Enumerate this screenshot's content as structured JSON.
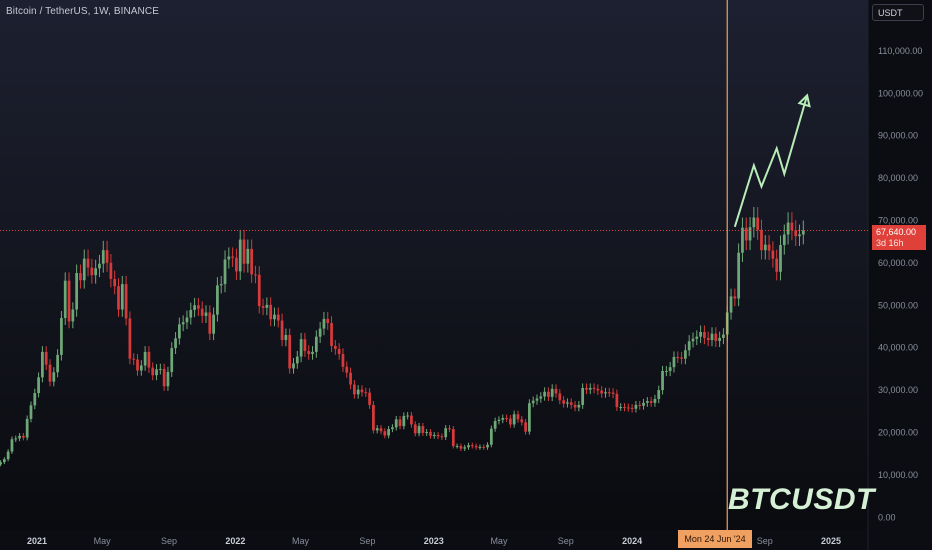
{
  "header": {
    "title": "Bitcoin / TetherUS, 1W, BINANCE"
  },
  "axis_unit": "USDT",
  "last_price": {
    "value": "67,640.00",
    "countdown": "3d 16h"
  },
  "crosshair": {
    "date_label": "Mon 24 Jun '24"
  },
  "watermark": "BTCUSDT",
  "colors": {
    "background": "#0b0d12",
    "up": "#6fa878",
    "down": "#d63a3a",
    "arrow": "#b8ecb8",
    "crosshair": "#f0a060",
    "price_line": "#e0403a"
  },
  "chart_data": {
    "type": "candlestick",
    "title": "Bitcoin / TetherUS, 1W, BINANCE",
    "y_unit": "USDT",
    "y_range": [
      -3000,
      122000
    ],
    "y_ticks": [
      {
        "value": 0,
        "label": "0.00"
      },
      {
        "value": 10000,
        "label": "10,000.00"
      },
      {
        "value": 20000,
        "label": "20,000.00"
      },
      {
        "value": 30000,
        "label": "30,000.00"
      },
      {
        "value": 40000,
        "label": "40,000.00"
      },
      {
        "value": 50000,
        "label": "50,000.00"
      },
      {
        "value": 60000,
        "label": "60,000.00"
      },
      {
        "value": 70000,
        "label": "70,000.00"
      },
      {
        "value": 80000,
        "label": "80,000.00"
      },
      {
        "value": 90000,
        "label": "90,000.00"
      },
      {
        "value": 100000,
        "label": "100,000.00"
      },
      {
        "value": 110000,
        "label": "110,000.00"
      }
    ],
    "x_range": [
      "2020-10-25",
      "2025-03-10"
    ],
    "x_ticks": [
      {
        "date": "2021-01-01",
        "label": "2021"
      },
      {
        "date": "2021-05-01",
        "label": "May"
      },
      {
        "date": "2021-09-01",
        "label": "Sep"
      },
      {
        "date": "2022-01-01",
        "label": "2022"
      },
      {
        "date": "2022-05-01",
        "label": "May"
      },
      {
        "date": "2022-09-01",
        "label": "Sep"
      },
      {
        "date": "2023-01-01",
        "label": "2023"
      },
      {
        "date": "2023-05-01",
        "label": "May"
      },
      {
        "date": "2023-09-01",
        "label": "Sep"
      },
      {
        "date": "2024-01-01",
        "label": "2024"
      },
      {
        "date": "2024-09-01",
        "label": "Sep"
      },
      {
        "date": "2025-01-01",
        "label": "2025"
      }
    ],
    "first_week": "2020-10-26",
    "closes": [
      13000,
      13700,
      15500,
      18400,
      18600,
      19200,
      18800,
      23200,
      26400,
      29300,
      33000,
      39000,
      36000,
      32000,
      34200,
      38300,
      47000,
      55800,
      46200,
      49000,
      57600,
      55900,
      61000,
      58900,
      57100,
      58700,
      59800,
      63000,
      60000,
      56200,
      54500,
      49000,
      55000,
      46900,
      37400,
      37200,
      34600,
      35800,
      39000,
      35300,
      33500,
      34900,
      35000,
      30900,
      34300,
      39900,
      42200,
      45500,
      46000,
      47100,
      48900,
      50000,
      49200,
      47500,
      48300,
      43300,
      47800,
      54700,
      55000,
      60800,
      61500,
      61200,
      58000,
      65500,
      59800,
      63300,
      57300,
      57200,
      49800,
      49400,
      50100,
      46700,
      47800,
      46400,
      41800,
      43000,
      35100,
      36300,
      37900,
      42000,
      39200,
      38500,
      39000,
      42600,
      44500,
      46800,
      45800,
      40400,
      39700,
      38500,
      35500,
      34100,
      31300,
      29000,
      30100,
      29500,
      29400,
      26500,
      20500,
      21000,
      20300,
      19300,
      20800,
      21200,
      23100,
      21500,
      23900,
      24000,
      21900,
      19800,
      21500,
      19900,
      20100,
      19200,
      19400,
      19100,
      18900,
      21000,
      20800,
      16800,
      16800,
      16200,
      16500,
      17000,
      16800,
      16500,
      16600,
      16500,
      17100,
      20900,
      22700,
      23000,
      23400,
      23300,
      21900,
      24300,
      23100,
      22400,
      20200,
      26900,
      27500,
      28000,
      28500,
      29600,
      28400,
      30300,
      29200,
      27600,
      26800,
      27100,
      26500,
      25900,
      26500,
      30500,
      30100,
      30500,
      30300,
      29900,
      29200,
      29500,
      29400,
      29100,
      26000,
      26000,
      25900,
      25800,
      25600,
      26500,
      26300,
      27000,
      27400,
      27000,
      27900,
      30000,
      34500,
      34500,
      35400,
      37800,
      37700,
      37400,
      39400,
      41500,
      42100,
      42600,
      43700,
      42300,
      41800,
      43300,
      41600,
      42300,
      43100,
      48300,
      52100,
      51600,
      62400,
      68300,
      65300,
      68400,
      70700,
      67800,
      63000,
      64300,
      62900,
      61000,
      57900,
      64200,
      66700,
      69500,
      67700,
      66300,
      66700,
      67640
    ],
    "projection": [
      {
        "date": "2024-07-08",
        "value": 68500
      },
      {
        "date": "2024-08-12",
        "value": 83000
      },
      {
        "date": "2024-08-26",
        "value": 78000
      },
      {
        "date": "2024-09-23",
        "value": 87000
      },
      {
        "date": "2024-10-07",
        "value": 81000
      },
      {
        "date": "2024-11-18",
        "value": 99500
      }
    ],
    "last_price_line": 67640,
    "crosshair_date": "2024-06-24"
  }
}
